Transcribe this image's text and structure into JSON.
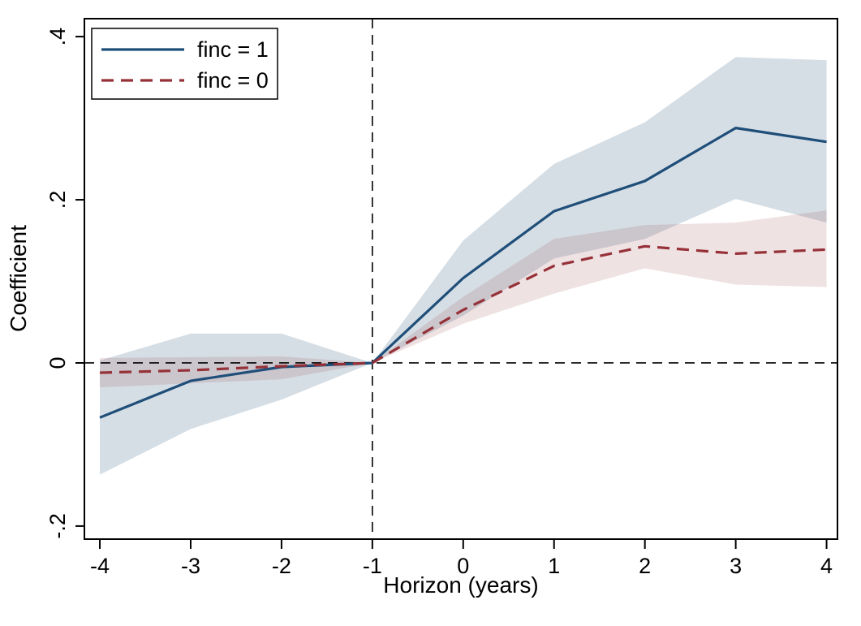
{
  "chart_data": {
    "type": "line",
    "title": "",
    "xlabel": "Horizon (years)",
    "ylabel": "Coefficient",
    "x": [
      -4,
      -3,
      -2,
      -1,
      0,
      1,
      2,
      3,
      4
    ],
    "x_tick_labels": [
      "-4",
      "-3",
      "-2",
      "-1",
      "0",
      "1",
      "2",
      "3",
      "4"
    ],
    "y_ticks": [
      {
        "value": 0.4,
        "label": ".4"
      },
      {
        "value": 0.2,
        "label": ".2"
      },
      {
        "value": 0.0,
        "label": "0"
      },
      {
        "value": -0.2,
        "label": "-.2"
      }
    ],
    "xlim": [
      -4.17,
      4.12
    ],
    "ylim": [
      -0.216,
      0.422
    ],
    "grid": false,
    "reference_lines": {
      "vertical_x": -1,
      "horizontal_y": 0,
      "color": "#000000",
      "style": "dashed"
    },
    "legend": {
      "position": "top-left",
      "border_color": "#000000",
      "background": "#ffffff"
    },
    "series": [
      {
        "name": "finc = 1",
        "line_style": "solid",
        "color": "#1f4e79",
        "band_color": "rgba(26,71,111,0.18)",
        "values": [
          -0.067,
          -0.022,
          -0.005,
          0,
          0.104,
          0.186,
          0.223,
          0.288,
          0.271
        ],
        "ci_lower": [
          -0.137,
          -0.081,
          -0.045,
          0,
          0.058,
          0.128,
          0.152,
          0.201,
          0.172
        ],
        "ci_upper": [
          0.003,
          0.036,
          0.036,
          0,
          0.15,
          0.244,
          0.295,
          0.375,
          0.371
        ]
      },
      {
        "name": "finc = 0",
        "line_style": "dashed",
        "color": "#963138",
        "band_color": "rgba(144,53,59,0.14)",
        "values": [
          -0.012,
          -0.009,
          -0.004,
          0,
          0.065,
          0.119,
          0.143,
          0.134,
          0.139
        ],
        "ci_lower": [
          -0.03,
          -0.025,
          -0.02,
          0,
          0.048,
          0.085,
          0.116,
          0.096,
          0.093
        ],
        "ci_upper": [
          0.006,
          0.007,
          0.008,
          0,
          0.081,
          0.152,
          0.169,
          0.172,
          0.187
        ]
      }
    ]
  }
}
